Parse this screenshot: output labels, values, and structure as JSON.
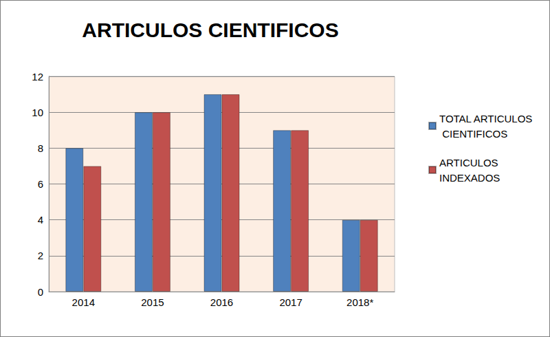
{
  "chart_data": {
    "type": "bar",
    "title": "ARTICULOS CIENTIFICOS",
    "categories": [
      "2014",
      "2015",
      "2016",
      "2017",
      "2018*"
    ],
    "series": [
      {
        "name": "TOTAL ARTICULOS CIENTIFICOS",
        "color": "#4f81bd",
        "values": [
          8,
          10,
          11,
          9,
          4
        ]
      },
      {
        "name": "ARTICULOS INDEXADOS",
        "color": "#c0504d",
        "values": [
          7,
          10,
          11,
          9,
          4
        ]
      }
    ],
    "ylim": [
      0,
      12
    ],
    "yticks": [
      0,
      2,
      4,
      6,
      8,
      10,
      12
    ],
    "grid": true,
    "legend": "right"
  }
}
